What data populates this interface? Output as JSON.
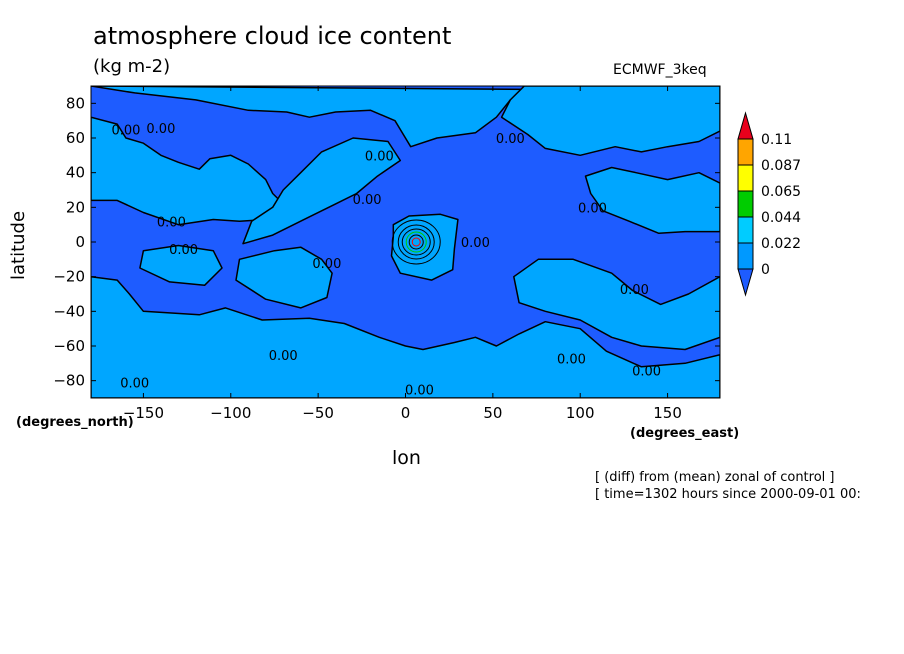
{
  "header": {
    "title": "atmosphere cloud ice content",
    "units": "(kg m-2)",
    "model": "ECMWF_3keq"
  },
  "footer": {
    "note1": "[ (diff) from (mean) zonal of control ]",
    "note2": "[ time=1302 hours since 2000-09-01 00:"
  },
  "chart_data": {
    "type": "heatmap",
    "title": "atmosphere cloud ice content",
    "subtitle": "(kg m-2)",
    "xlabel": "lon",
    "ylabel": "latitude",
    "x_units": "(degrees_east)",
    "y_units": "(degrees_north)",
    "xlim": [
      -180,
      180
    ],
    "ylim": [
      -90,
      90
    ],
    "x_ticks": [
      -150,
      -100,
      -50,
      0,
      50,
      100,
      150
    ],
    "y_ticks": [
      -80,
      -60,
      -40,
      -20,
      0,
      20,
      40,
      60,
      80
    ],
    "colorbar": {
      "levels": [
        "0.11",
        "0.087",
        "0.065",
        "0.044",
        "0.022",
        "0"
      ],
      "colors": [
        "#e8001c",
        "#ffa500",
        "#ffff00",
        "#00cc00",
        "#00ccff",
        "#0099ff",
        "#1e5cff"
      ]
    },
    "background_color": "#1e5cff",
    "fill_color": "#00a6ff",
    "contour_label": "0.00",
    "hotspot": {
      "lon": 5,
      "lat": 0
    }
  }
}
